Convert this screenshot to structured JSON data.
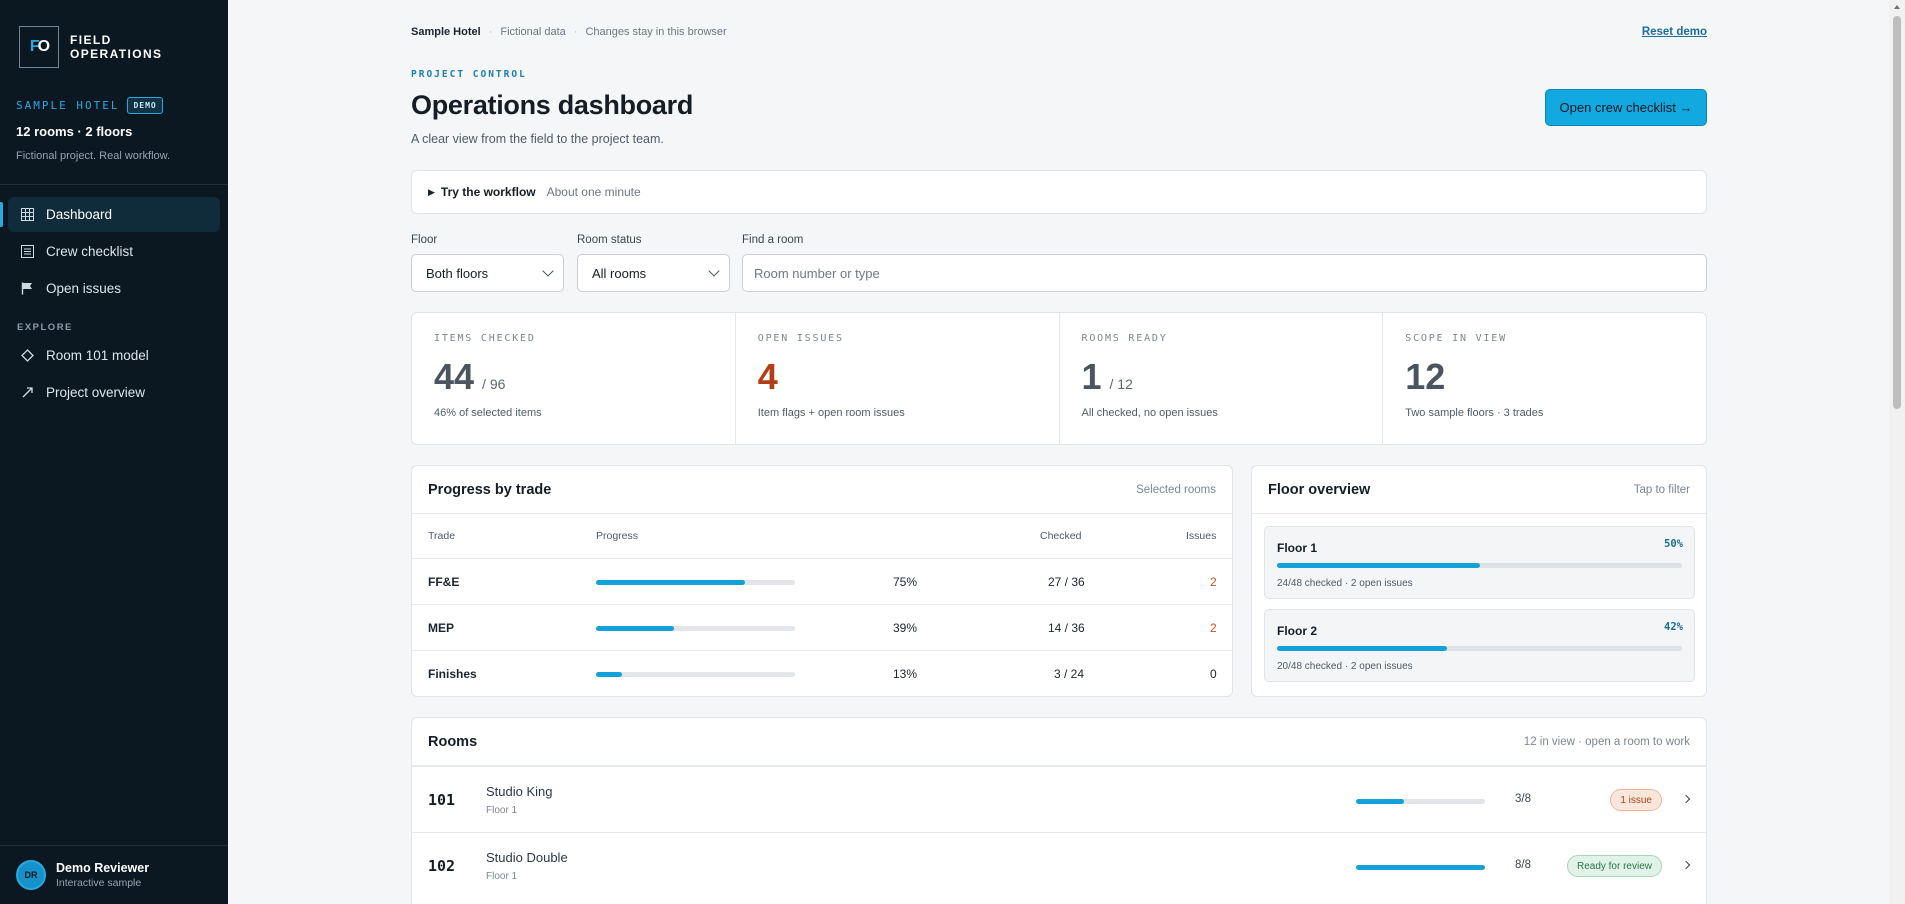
{
  "brand": {
    "logo_left": "F",
    "logo_right": "O",
    "line1": "FIELD",
    "line2": "OPERATIONS"
  },
  "project": {
    "name": "SAMPLE HOTEL",
    "badge": "DEMO",
    "size": "12 rooms · 2 floors",
    "note": "Fictional project. Real workflow."
  },
  "nav": {
    "items": [
      {
        "label": "Dashboard",
        "icon": "grid-icon"
      },
      {
        "label": "Crew checklist",
        "icon": "list-icon"
      },
      {
        "label": "Open issues",
        "icon": "flag-icon"
      }
    ],
    "explore_label": "EXPLORE",
    "explore_items": [
      {
        "label": "Room 101 model",
        "icon": "diamond-icon"
      },
      {
        "label": "Project overview",
        "icon": "arrow-up-right-icon"
      }
    ]
  },
  "user": {
    "initials": "DR",
    "name": "Demo Reviewer",
    "sub": "Interactive sample"
  },
  "topbar": {
    "project": "Sample Hotel",
    "sep": "·",
    "note1": "Fictional data",
    "note2": "Changes stay in this browser",
    "reset": "Reset demo"
  },
  "header": {
    "eyebrow": "PROJECT CONTROL",
    "title": "Operations dashboard",
    "subtitle": "A clear view from the field to the project team.",
    "cta": "Open crew checklist →"
  },
  "workflow": {
    "label": "Try the workflow",
    "meta": "About one minute"
  },
  "filters": {
    "floor": {
      "label": "Floor",
      "value": "Both floors"
    },
    "status": {
      "label": "Room status",
      "value": "All rooms"
    },
    "search": {
      "label": "Find a room",
      "placeholder": "Room number or type"
    }
  },
  "stats": [
    {
      "label": "ITEMS CHECKED",
      "value": "44",
      "total": "/ 96",
      "note": "46% of selected items"
    },
    {
      "label": "OPEN ISSUES",
      "value": "4",
      "total": "",
      "note": "Item flags + open room issues"
    },
    {
      "label": "ROOMS READY",
      "value": "1",
      "total": "/ 12",
      "note": "All checked, no open issues"
    },
    {
      "label": "SCOPE IN VIEW",
      "value": "12",
      "total": "",
      "note": "Two sample floors · 3 trades"
    }
  ],
  "trade": {
    "title": "Progress by trade",
    "meta": "Selected rooms",
    "headers": {
      "trade": "Trade",
      "progress": "Progress",
      "checked": "Checked",
      "issues": "Issues"
    },
    "rows": [
      {
        "name": "FF&E",
        "progress": 0.75,
        "pct": "75%",
        "checked": "27 / 36",
        "issues": "2"
      },
      {
        "name": "MEP",
        "progress": 0.39,
        "pct": "39%",
        "checked": "14 / 36",
        "issues": "2"
      },
      {
        "name": "Finishes",
        "progress": 0.13,
        "pct": "13%",
        "checked": "3 / 24",
        "issues": "0"
      }
    ]
  },
  "floors": {
    "title": "Floor overview",
    "meta": "Tap to filter",
    "cards": [
      {
        "name": "Floor 1",
        "pct": "50%",
        "progress": 0.5,
        "note": "24/48 checked · 2 open issues"
      },
      {
        "name": "Floor 2",
        "pct": "42%",
        "progress": 0.42,
        "note": "20/48 checked · 2 open issues"
      }
    ]
  },
  "rooms": {
    "title": "Rooms",
    "meta": "12 in view · open a room to work",
    "rows": [
      {
        "number": "101",
        "type": "Studio King",
        "floor": "Floor 1",
        "progress": 0.375,
        "count": "3/8",
        "status": "1 issue",
        "status_kind": "issue"
      },
      {
        "number": "102",
        "type": "Studio Double",
        "floor": "Floor 1",
        "progress": 1.0,
        "count": "8/8",
        "status": "Ready for review",
        "status_kind": "ready"
      }
    ]
  }
}
